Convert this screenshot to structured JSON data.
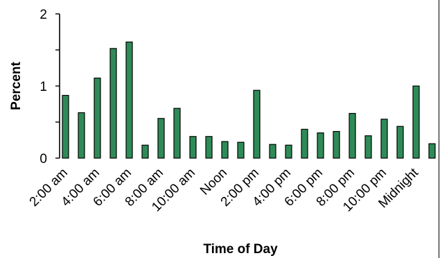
{
  "chart_data": {
    "type": "bar",
    "xlabel": "Time of Day",
    "ylabel": "Percent",
    "ylim": [
      0,
      2
    ],
    "y_ticks": [
      0,
      1,
      2
    ],
    "bar_color": "#2e8b57",
    "x_tick_labels": [
      "2:00 am",
      "4:00 am",
      "6:00 am",
      "8:00 am",
      "10:00 am",
      "Noon",
      "2:00 pm",
      "4:00 pm",
      "6:00 pm",
      "8:00 pm",
      "10:00 pm",
      "Midnight"
    ],
    "values": [
      0.87,
      0.63,
      1.11,
      1.52,
      1.61,
      0.18,
      0.55,
      0.69,
      0.3,
      0.3,
      0.23,
      0.22,
      0.94,
      0.19,
      0.18,
      0.4,
      0.35,
      0.37,
      0.62,
      0.31,
      0.54,
      0.44,
      1.0,
      0.2
    ]
  }
}
